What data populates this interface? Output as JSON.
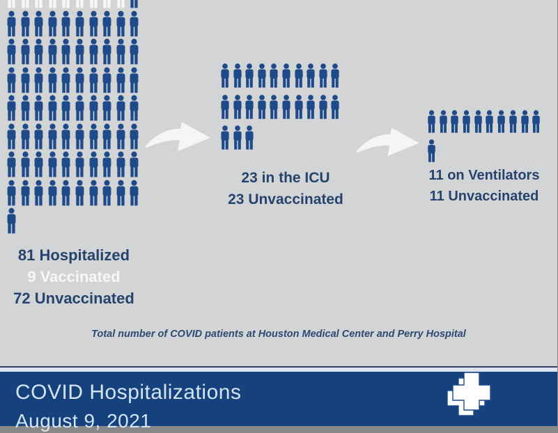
{
  "colors": {
    "background": "#d3d4d5",
    "unvaccinated_icon": "#1e4a89",
    "vaccinated_icon": "#f6f7f8",
    "label_navy": "#26436e",
    "label_white": "#f6f7f8",
    "caption_text": "#2c4a72",
    "banner_background": "#15427d",
    "banner_text": "#d5e4f4",
    "arrow": "#f5f5f5"
  },
  "chart_data": {
    "type": "pictograph",
    "title": "COVID Hospitalizations",
    "date": "August 9, 2021",
    "caption": "Total number of COVID patients at Houston Medical Center and Perry Hospital",
    "legend": {
      "white_icon": "Vaccinated",
      "navy_icon": "Unvaccinated"
    },
    "groups": [
      {
        "name": "Hospitalized",
        "total": 81,
        "vaccinated": 9,
        "unvaccinated": 72,
        "label_lines": [
          "81 Hospitalized",
          "9 Vaccinated",
          "72 Unvaccinated"
        ],
        "icons_per_row": 10,
        "icon_rows": [
          {
            "vaccinated": 9,
            "unvaccinated": 1
          },
          {
            "unvaccinated": 10
          },
          {
            "unvaccinated": 10
          },
          {
            "unvaccinated": 10
          },
          {
            "unvaccinated": 10
          },
          {
            "unvaccinated": 10
          },
          {
            "unvaccinated": 10
          },
          {
            "unvaccinated": 10
          },
          {
            "unvaccinated": 1
          }
        ]
      },
      {
        "name": "ICU",
        "total": 23,
        "vaccinated": 0,
        "unvaccinated": 23,
        "label_lines": [
          "23 in the ICU",
          "23 Unvaccinated"
        ],
        "icons_per_row": 10,
        "icon_rows": [
          {
            "unvaccinated": 10
          },
          {
            "unvaccinated": 10
          },
          {
            "unvaccinated": 3
          }
        ]
      },
      {
        "name": "Ventilators",
        "total": 11,
        "vaccinated": 0,
        "unvaccinated": 11,
        "label_lines": [
          "11 on Ventilators",
          "11 Unvaccinated"
        ],
        "icons_per_row": 10,
        "icon_rows": [
          {
            "unvaccinated": 10
          },
          {
            "unvaccinated": 1
          }
        ]
      }
    ]
  },
  "caption": {
    "text": "Total number of COVID patients at Houston Medical Center and Perry Hospital"
  },
  "banner": {
    "title": "COVID Hospitalizations",
    "date": "August 9, 2021"
  }
}
